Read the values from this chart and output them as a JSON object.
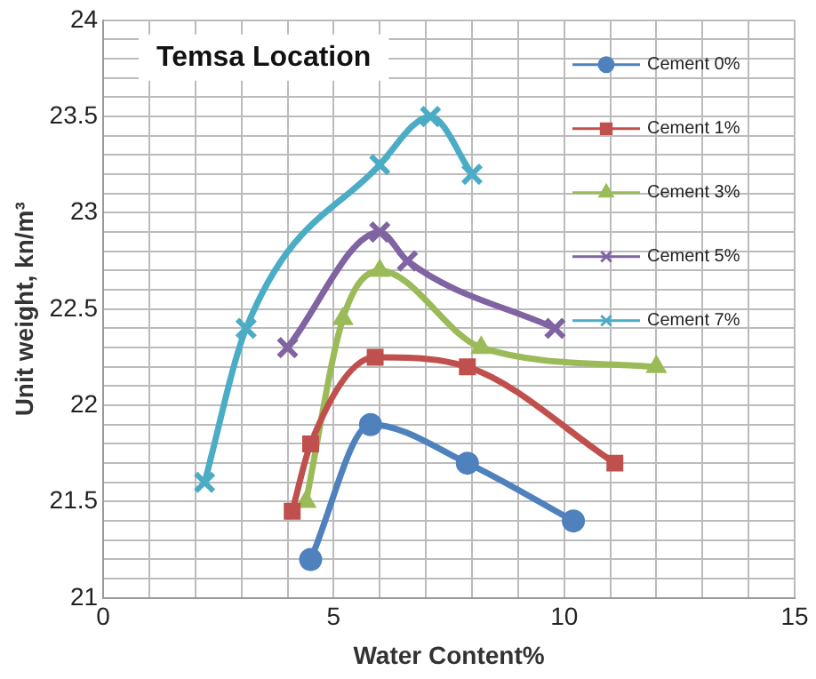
{
  "chart_data": {
    "type": "line",
    "title": "Temsa Location",
    "xlabel": "Water Content%",
    "ylabel": "Unit weight, kn/m³",
    "xlim": [
      0,
      15
    ],
    "ylim": [
      21,
      24
    ],
    "xticks": [
      0,
      {
        "value": 1,
        "label": null
      },
      {
        "value": 2,
        "label": null
      },
      {
        "value": 3,
        "label": null
      },
      {
        "value": 4,
        "label": null
      },
      5,
      {
        "value": 6,
        "label": null
      },
      {
        "value": 7,
        "label": null
      },
      {
        "value": 8,
        "label": null
      },
      {
        "value": 9,
        "label": null
      },
      10,
      {
        "value": 11,
        "label": null
      },
      {
        "value": 12,
        "label": null
      },
      {
        "value": 13,
        "label": null
      },
      {
        "value": 14,
        "label": null
      },
      15
    ],
    "yticks": [
      21,
      {
        "value": 21.1,
        "label": null
      },
      {
        "value": 21.2,
        "label": null
      },
      {
        "value": 21.3,
        "label": null
      },
      {
        "value": 21.4,
        "label": null
      },
      21.5,
      {
        "value": 21.6,
        "label": null
      },
      {
        "value": 21.7,
        "label": null
      },
      {
        "value": 21.8,
        "label": null
      },
      {
        "value": 21.9,
        "label": null
      },
      22,
      {
        "value": 22.1,
        "label": null
      },
      {
        "value": 22.2,
        "label": null
      },
      {
        "value": 22.3,
        "label": null
      },
      {
        "value": 22.4,
        "label": null
      },
      22.5,
      {
        "value": 22.6,
        "label": null
      },
      {
        "value": 22.7,
        "label": null
      },
      {
        "value": 22.8,
        "label": null
      },
      {
        "value": 22.9,
        "label": null
      },
      23,
      {
        "value": 23.1,
        "label": null
      },
      {
        "value": 23.2,
        "label": null
      },
      {
        "value": 23.3,
        "label": null
      },
      {
        "value": 23.4,
        "label": null
      },
      23.5,
      {
        "value": 23.6,
        "label": null
      },
      {
        "value": 23.7,
        "label": null
      },
      {
        "value": 23.8,
        "label": null
      },
      {
        "value": 23.9,
        "label": null
      },
      24
    ],
    "grid": true,
    "legend": "top right",
    "series": [
      {
        "name": "Cement 0%",
        "color": "#4f81bd",
        "marker": "circle",
        "x": [
          4.5,
          5.8,
          7.9,
          10.2
        ],
        "values": [
          21.2,
          21.9,
          21.7,
          21.4
        ]
      },
      {
        "name": "Cement 1%",
        "color": "#c0504d",
        "marker": "square",
        "x": [
          4.1,
          4.5,
          5.9,
          7.9,
          11.1
        ],
        "values": [
          21.45,
          21.8,
          22.25,
          22.2,
          21.7
        ]
      },
      {
        "name": "Cement 3%",
        "color": "#9bbb59",
        "marker": "triangle",
        "x": [
          4.4,
          5.2,
          6.0,
          8.2,
          12.0
        ],
        "values": [
          21.5,
          22.45,
          22.7,
          22.3,
          22.2
        ]
      },
      {
        "name": "Cement 5%",
        "color": "#8064a2",
        "marker": "cross",
        "x": [
          4.0,
          6.0,
          6.6,
          9.8
        ],
        "values": [
          22.3,
          22.9,
          22.75,
          22.4
        ]
      },
      {
        "name": "Cement 7%",
        "color": "#4bacc6",
        "marker": "cross",
        "x": [
          2.2,
          3.1,
          6.0,
          7.1,
          8.0
        ],
        "values": [
          21.6,
          22.4,
          23.25,
          23.5,
          23.2
        ]
      }
    ]
  }
}
